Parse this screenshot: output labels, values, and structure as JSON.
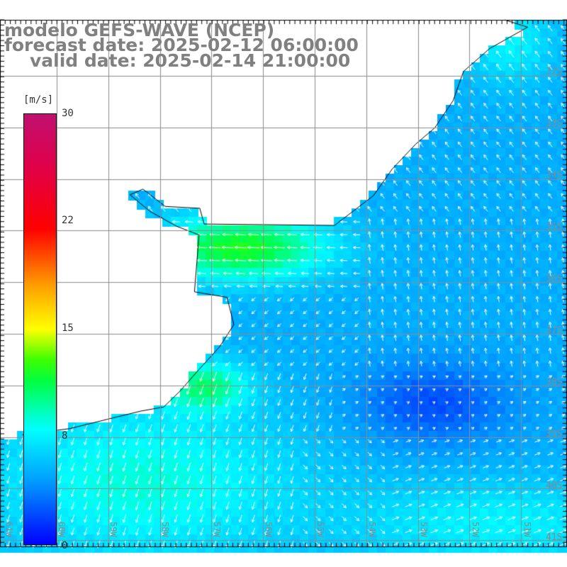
{
  "title": {
    "line1": "modelo GEFS-WAVE (NCEP)",
    "line2": "forecast date: 2025-02-12 06:00:00",
    "line3": "valid date: 2025-02-14 21:00:00"
  },
  "colorbar": {
    "unit": "[m/s]",
    "ticks": [
      "30",
      "22",
      "15",
      "8",
      "0"
    ],
    "colors": [
      "#0000ff",
      "#00ffff",
      "#40ff00",
      "#ffff00",
      "#ff0000",
      "#c01070"
    ]
  },
  "lat_labels": [
    "32S",
    "33S",
    "34S",
    "35S",
    "36S",
    "37S",
    "38S",
    "39S",
    "40S",
    "41S"
  ],
  "lon_labels": [
    "61W",
    "60W",
    "59W",
    "58W",
    "57W",
    "56W",
    "55W",
    "54W",
    "53W",
    "52W",
    "51W"
  ],
  "colors": {
    "land": "#ffffff",
    "grid": "#8c8c8c",
    "coast": "#000000",
    "arrow": "#ffffff",
    "title": "#808080"
  }
}
